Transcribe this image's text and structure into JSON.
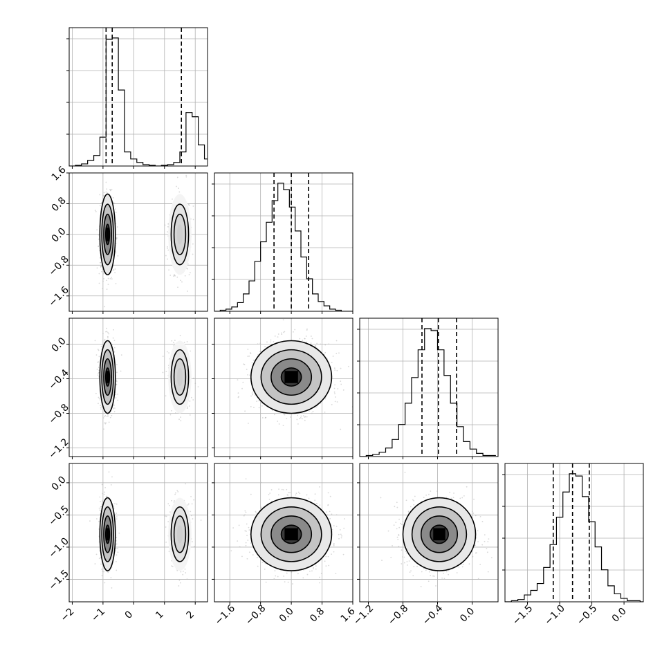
{
  "chart_data": {
    "type": "corner",
    "parameters": [
      {
        "ticks": [
          -2,
          -1,
          0,
          1,
          2
        ],
        "tick_labels": [
          "−2",
          "−1",
          "0",
          "1",
          "2"
        ],
        "range": [
          -2.1,
          2.4
        ],
        "hist_edges_start": -2.1,
        "hist_bin_width": 0.2,
        "hist_counts": [
          0,
          1,
          3,
          8,
          15,
          41,
          180,
          182,
          108,
          20,
          10,
          5,
          2,
          1,
          0,
          1,
          2,
          5,
          20,
          76,
          70,
          30,
          10,
          4,
          1
        ],
        "quantiles": [
          -0.9,
          -0.7,
          1.55
        ],
        "modes": [
          {
            "center": -0.85,
            "sigma": 0.12,
            "weight": 0.72
          },
          {
            "center": 1.5,
            "sigma": 0.18,
            "weight": 0.28
          }
        ]
      },
      {
        "ticks": [
          -1.6,
          -0.8,
          0.0,
          0.8,
          1.6
        ],
        "tick_labels": [
          "−1.6",
          "−0.8",
          "0.0",
          "0.8",
          "1.6"
        ],
        "range": [
          -2.0,
          1.6
        ],
        "hist_edges_start": -2.0,
        "hist_bin_width": 0.15,
        "hist_counts": [
          0,
          1,
          2,
          4,
          8,
          16,
          28,
          46,
          64,
          82,
          102,
          118,
          112,
          96,
          74,
          50,
          30,
          16,
          9,
          5,
          2,
          1,
          0,
          0
        ],
        "quantiles": [
          -0.45,
          0.0,
          0.45
        ],
        "mean": 0.0,
        "sigma": 0.5
      },
      {
        "ticks": [
          -1.2,
          -0.8,
          -0.4,
          0.0
        ],
        "tick_labels": [
          "−1.2",
          "−0.8",
          "−0.4",
          "0.0"
        ],
        "range": [
          -1.3,
          0.3
        ],
        "hist_edges_start": -1.3,
        "hist_bin_width": 0.075,
        "hist_counts": [
          0,
          1,
          2,
          4,
          8,
          16,
          30,
          50,
          74,
          100,
          120,
          118,
          100,
          76,
          50,
          28,
          14,
          7,
          3,
          1,
          1
        ],
        "quantiles": [
          -0.58,
          -0.39,
          -0.18
        ],
        "mean": -0.38,
        "sigma": 0.2
      },
      {
        "ticks": [
          -1.5,
          -1.0,
          -0.5,
          0.0
        ],
        "tick_labels": [
          "−1.5",
          "−1.0",
          "−0.5",
          "0.0"
        ],
        "range": [
          -1.85,
          0.3
        ],
        "hist_edges_start": -1.85,
        "hist_bin_width": 0.1,
        "hist_counts": [
          0,
          1,
          2,
          6,
          10,
          16,
          30,
          50,
          74,
          96,
          112,
          110,
          92,
          70,
          48,
          28,
          14,
          7,
          3,
          1,
          1,
          0
        ],
        "quantiles": [
          -1.1,
          -0.8,
          -0.54
        ],
        "mean": -0.8,
        "sigma": 0.27
      }
    ],
    "contour_levels_sigma": [
      0.5,
      1.0,
      1.5,
      2.0
    ]
  }
}
